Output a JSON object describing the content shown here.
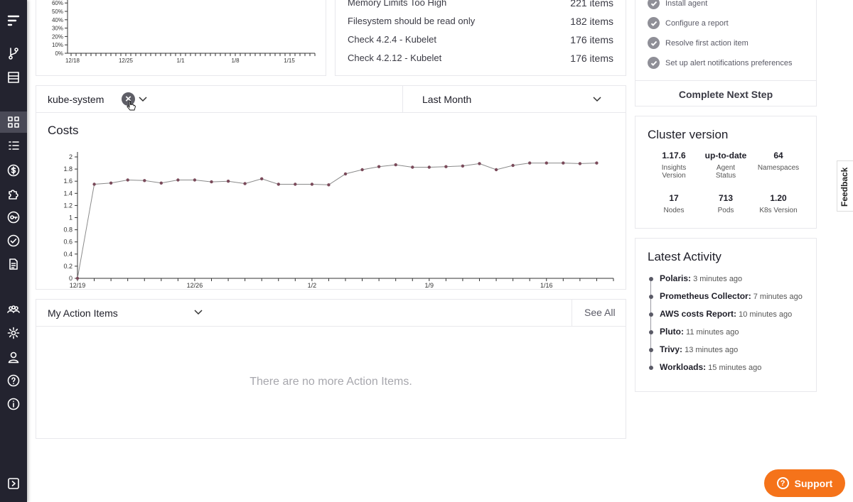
{
  "top_chart": {
    "type": "line",
    "y_tick_labels": [
      "60%",
      "50%",
      "40%",
      "30%",
      "20%",
      "10%",
      "0%"
    ],
    "x_tick_labels": [
      "12/18",
      "12/25",
      "1/1",
      "1/8",
      "1/15"
    ]
  },
  "report_list": [
    {
      "name": "Memory Limits Too High",
      "count": "221 items"
    },
    {
      "name": "Filesystem should be read only",
      "count": "182 items"
    },
    {
      "name": "Check 4.2.4 - Kubelet",
      "count": "176 items"
    },
    {
      "name": "Check 4.2.12 - Kubelet",
      "count": "176 items"
    }
  ],
  "onboarding": {
    "steps": [
      "Install agent",
      "Configure a report",
      "Resolve first action item",
      "Set up alert notifications preferences"
    ],
    "button": "Complete Next Step"
  },
  "filter": {
    "namespace": "kube-system",
    "period": "Last Month"
  },
  "costs": {
    "title": "Costs"
  },
  "chart_data": {
    "type": "line",
    "title": "Costs",
    "xlabel": "",
    "ylabel": "",
    "ylim": [
      0,
      2.1
    ],
    "y_ticks": [
      "2",
      "1.8",
      "1.6",
      "1.4",
      "1.2",
      "1",
      "0.8",
      "0.6",
      "0.4",
      "0.2",
      "0"
    ],
    "x_tick_labels": [
      "12/19",
      "12/26",
      "1/2",
      "1/9",
      "1/16"
    ],
    "values": [
      0,
      1.55,
      1.57,
      1.62,
      1.61,
      1.57,
      1.62,
      1.62,
      1.59,
      1.6,
      1.56,
      1.64,
      1.55,
      1.55,
      1.55,
      1.54,
      1.72,
      1.79,
      1.84,
      1.87,
      1.83,
      1.83,
      1.84,
      1.85,
      1.89,
      1.79,
      1.86,
      1.9,
      1.9,
      1.9,
      1.89,
      1.9
    ]
  },
  "action_items": {
    "title": "My Action Items",
    "see_all": "See All",
    "empty": "There are no more Action Items."
  },
  "cluster": {
    "title": "Cluster version",
    "stats": [
      {
        "value": "1.17.6",
        "label1": "Insights",
        "label2": "Version"
      },
      {
        "value": "up-to-date",
        "label1": "Agent",
        "label2": "Status"
      },
      {
        "value": "64",
        "label1": "Namespaces",
        "label2": ""
      },
      {
        "value": "17",
        "label1": "Nodes",
        "label2": ""
      },
      {
        "value": "713",
        "label1": "Pods",
        "label2": ""
      },
      {
        "value": "1.20",
        "label1": "K8s Version",
        "label2": ""
      }
    ]
  },
  "activity": {
    "title": "Latest Activity",
    "items": [
      {
        "name": "Polaris:",
        "time": "3 minutes ago"
      },
      {
        "name": "Prometheus Collector:",
        "time": "7 minutes ago"
      },
      {
        "name": "AWS costs Report:",
        "time": "10 minutes ago"
      },
      {
        "name": "Pluto:",
        "time": "11 minutes ago"
      },
      {
        "name": "Trivy:",
        "time": "13 minutes ago"
      },
      {
        "name": "Workloads:",
        "time": "15 minutes ago"
      }
    ]
  },
  "support_label": "Support",
  "feedback_label": "Feedback"
}
